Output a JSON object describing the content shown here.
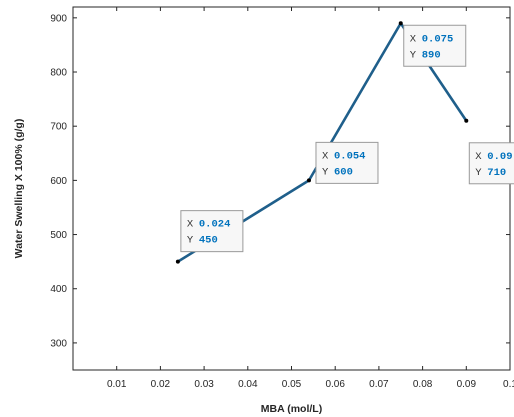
{
  "chart_data": {
    "type": "line",
    "title": "",
    "xlabel": "MBA (mol/L)",
    "ylabel": "Water Swelling X 100% (g/g)",
    "xlim": [
      0,
      0.1
    ],
    "ylim": [
      250,
      920
    ],
    "xticks": [
      0.01,
      0.02,
      0.03,
      0.04,
      0.05,
      0.06,
      0.07,
      0.08,
      0.09,
      0.1
    ],
    "xtick_labels": [
      "0.01",
      "0.02",
      "0.03",
      "0.04",
      "0.05",
      "0.06",
      "0.07",
      "0.08",
      "0.09",
      "0.1"
    ],
    "yticks": [
      300,
      400,
      500,
      600,
      700,
      800,
      900
    ],
    "ytick_labels": [
      "300",
      "400",
      "500",
      "600",
      "700",
      "800",
      "900"
    ],
    "grid": false,
    "line_color": "#1f5f8b",
    "marker_color": "#000000",
    "series": [
      {
        "x": [
          0.024,
          0.054,
          0.075,
          0.09
        ],
        "y": [
          450,
          600,
          890,
          710
        ]
      }
    ],
    "datatips": [
      {
        "x_key": "X",
        "x_text": "0.024",
        "y_key": "Y",
        "y_text": "450"
      },
      {
        "x_key": "X",
        "x_text": "0.054",
        "y_key": "Y",
        "y_text": "600"
      },
      {
        "x_key": "X",
        "x_text": "0.075",
        "y_key": "Y",
        "y_text": "890"
      },
      {
        "x_key": "X",
        "x_text": "0.09",
        "y_key": "Y",
        "y_text": "710"
      }
    ]
  }
}
